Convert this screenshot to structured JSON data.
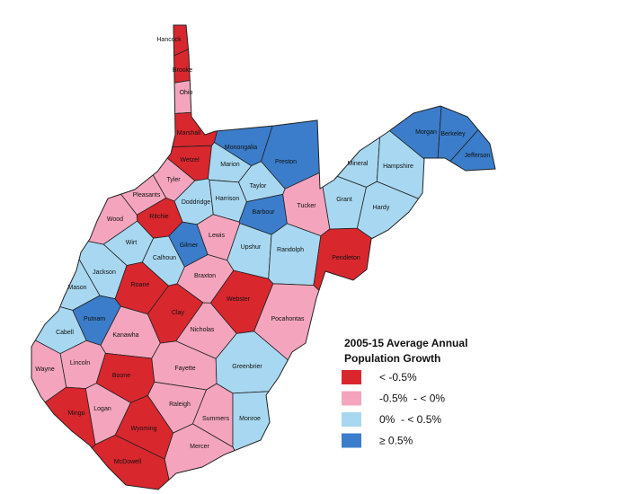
{
  "map": {
    "legend": {
      "title_lines": [
        "2005-15 Average Annual",
        "Population Growth"
      ],
      "items": [
        {
          "label": "< -0.5%",
          "color": "#d9272e"
        },
        {
          "label": "-0.5%  - < 0%",
          "color": "#f4a5bd"
        },
        {
          "label": "0%  - < 0.5%",
          "color": "#a8d8f1"
        },
        {
          "label": "≥ 0.5%",
          "color": "#3b7dca"
        }
      ]
    },
    "counties": [
      {
        "name": "Hancock",
        "group": 0
      },
      {
        "name": "Brooke",
        "group": 0
      },
      {
        "name": "Ohio",
        "group": 1
      },
      {
        "name": "Marshall",
        "group": 0
      },
      {
        "name": "Wetzel",
        "group": 0
      },
      {
        "name": "Monongalia",
        "group": 3
      },
      {
        "name": "Preston",
        "group": 3
      },
      {
        "name": "Marion",
        "group": 2
      },
      {
        "name": "Taylor",
        "group": 2
      },
      {
        "name": "Tyler",
        "group": 1
      },
      {
        "name": "Pleasants",
        "group": 1
      },
      {
        "name": "Doddridge",
        "group": 2
      },
      {
        "name": "Harrison",
        "group": 2
      },
      {
        "name": "Barbour",
        "group": 3
      },
      {
        "name": "Tucker",
        "group": 1
      },
      {
        "name": "Ritchie",
        "group": 0
      },
      {
        "name": "Wood",
        "group": 1
      },
      {
        "name": "Wirt",
        "group": 2
      },
      {
        "name": "Gilmer",
        "group": 3
      },
      {
        "name": "Lewis",
        "group": 1
      },
      {
        "name": "Upshur",
        "group": 2
      },
      {
        "name": "Randolph",
        "group": 2
      },
      {
        "name": "Calhoun",
        "group": 2
      },
      {
        "name": "Jackson",
        "group": 2
      },
      {
        "name": "Mason",
        "group": 2
      },
      {
        "name": "Roane",
        "group": 0
      },
      {
        "name": "Braxton",
        "group": 1
      },
      {
        "name": "Webster",
        "group": 0
      },
      {
        "name": "Pendleton",
        "group": 0
      },
      {
        "name": "Grant",
        "group": 2
      },
      {
        "name": "Mineral",
        "group": 2
      },
      {
        "name": "Hampshire",
        "group": 2
      },
      {
        "name": "Hardy",
        "group": 2
      },
      {
        "name": "Morgan",
        "group": 3
      },
      {
        "name": "Berkeley",
        "group": 3
      },
      {
        "name": "Jefferson",
        "group": 3
      },
      {
        "name": "Putnam",
        "group": 3
      },
      {
        "name": "Clay",
        "group": 0
      },
      {
        "name": "Cabell",
        "group": 2
      },
      {
        "name": "Kanawha",
        "group": 1
      },
      {
        "name": "Nicholas",
        "group": 1
      },
      {
        "name": "Pocahontas",
        "group": 1
      },
      {
        "name": "Lincoln",
        "group": 1
      },
      {
        "name": "Wayne",
        "group": 1
      },
      {
        "name": "Boone",
        "group": 0
      },
      {
        "name": "Fayette",
        "group": 1
      },
      {
        "name": "Greenbrier",
        "group": 2
      },
      {
        "name": "Logan",
        "group": 1
      },
      {
        "name": "Mingo",
        "group": 0
      },
      {
        "name": "Raleigh",
        "group": 1
      },
      {
        "name": "Summers",
        "group": 1
      },
      {
        "name": "Monroe",
        "group": 2
      },
      {
        "name": "Wyoming",
        "group": 0
      },
      {
        "name": "McDowell",
        "group": 0
      },
      {
        "name": "Mercer",
        "group": 1
      }
    ]
  }
}
